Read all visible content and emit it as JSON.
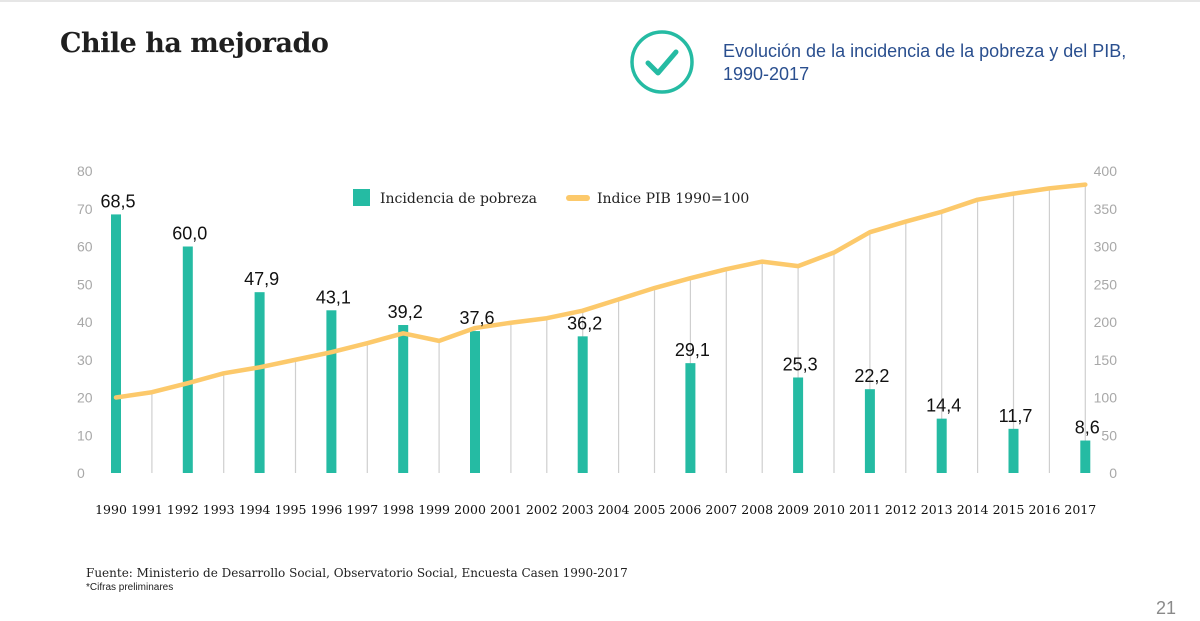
{
  "header": {
    "title": "Chile ha mejorado",
    "subtitle": "Evolución de la incidencia de la pobreza y del PIB, 1990-2017"
  },
  "colors": {
    "bar": "#25bba3",
    "line": "#fcc96b",
    "check": "#25bba3",
    "subtitle": "#2a4f8f",
    "grid": "#cfcfcf",
    "tick": "#a8a8a8"
  },
  "icons": {
    "check": "check-circle-icon"
  },
  "chart_data": {
    "type": "bar",
    "title": "Evolución de la incidencia de la pobreza y del PIB, 1990-2017",
    "categories": [
      "1990",
      "1991",
      "1992",
      "1993",
      "1994",
      "1995",
      "1996",
      "1997",
      "1998",
      "1999",
      "2000",
      "2001",
      "2002",
      "2003",
      "2004",
      "2005",
      "2006",
      "2007",
      "2008",
      "2009",
      "2010",
      "2011",
      "2012",
      "2013",
      "2014",
      "2015",
      "2016",
      "2017"
    ],
    "left_axis": {
      "ticks": [
        "0",
        "10",
        "20",
        "30",
        "40",
        "50",
        "60",
        "70",
        "80"
      ],
      "ylim": [
        0,
        80
      ]
    },
    "right_axis": {
      "ticks": [
        "0",
        "50",
        "100",
        "150",
        "200",
        "250",
        "300",
        "350",
        "400"
      ],
      "ylim": [
        0,
        400
      ]
    },
    "series": [
      {
        "name": "Incidencia de pobreza",
        "type": "bar",
        "axis": "left",
        "points": [
          {
            "year": "1990",
            "value": 68.5,
            "label": "68,5"
          },
          {
            "year": "1992",
            "value": 60.0,
            "label": "60,0"
          },
          {
            "year": "1994",
            "value": 47.9,
            "label": "47,9"
          },
          {
            "year": "1996",
            "value": 43.1,
            "label": "43,1"
          },
          {
            "year": "1998",
            "value": 39.2,
            "label": "39,2"
          },
          {
            "year": "2000",
            "value": 37.6,
            "label": "37,6"
          },
          {
            "year": "2003",
            "value": 36.2,
            "label": "36,2"
          },
          {
            "year": "2006",
            "value": 29.1,
            "label": "29,1"
          },
          {
            "year": "2009",
            "value": 25.3,
            "label": "25,3"
          },
          {
            "year": "2011",
            "value": 22.2,
            "label": "22,2"
          },
          {
            "year": "2013",
            "value": 14.4,
            "label": "14,4"
          },
          {
            "year": "2015",
            "value": 11.7,
            "label": "11,7"
          },
          {
            "year": "2017",
            "value": 8.6,
            "label": "8,6"
          }
        ]
      },
      {
        "name": "Indice PIB 1990=100",
        "type": "line",
        "axis": "right",
        "values": [
          100,
          107,
          119,
          132,
          140,
          150,
          160,
          172,
          185,
          175,
          192,
          199,
          205,
          215,
          230,
          245,
          258,
          270,
          280,
          274,
          292,
          319,
          333,
          346,
          362,
          370,
          377,
          382
        ]
      }
    ],
    "legend_position": "top-center"
  },
  "footer": {
    "source": "Fuente: Ministerio de Desarrollo Social, Observatorio Social, Encuesta Casen 1990-2017",
    "note": "*Cifras preliminares",
    "page_number": "21"
  }
}
